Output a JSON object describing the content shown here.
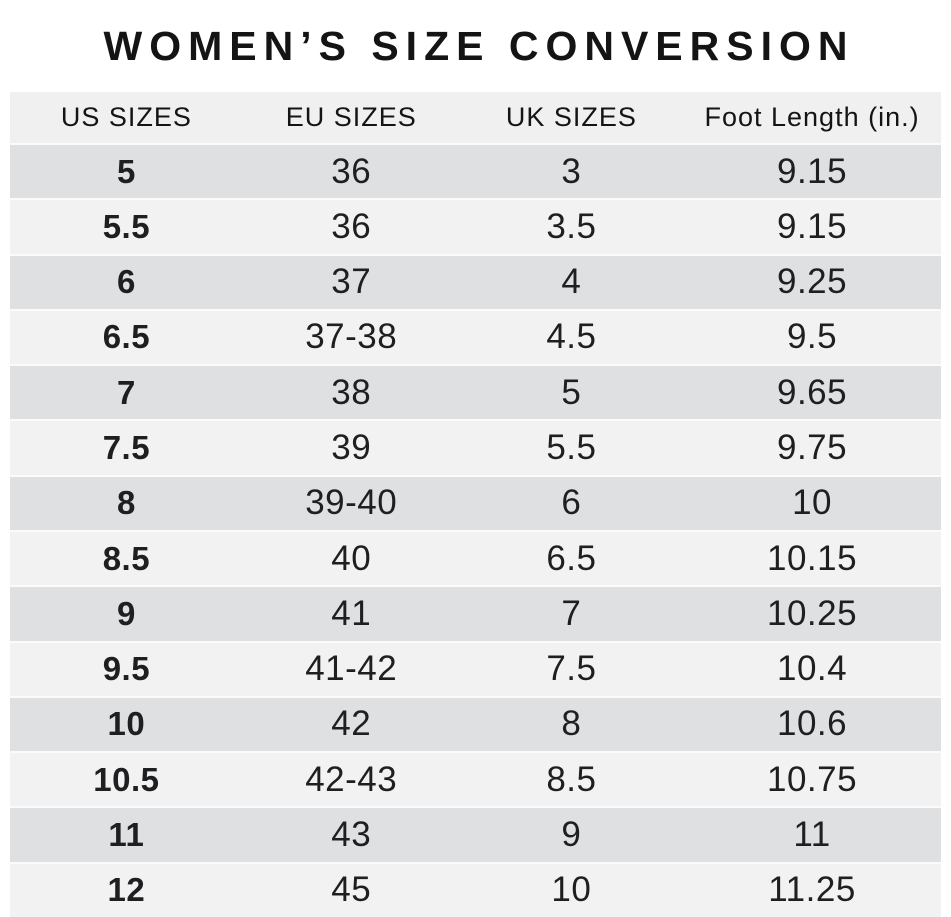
{
  "chart_data": {
    "type": "table",
    "title": "WOMEN’S SIZE CONVERSION",
    "columns": [
      "US SIZES",
      "EU SIZES",
      "UK SIZES",
      "Foot Length (in.)"
    ],
    "rows": [
      [
        "5",
        "36",
        "3",
        "9.15"
      ],
      [
        "5.5",
        "36",
        "3.5",
        "9.15"
      ],
      [
        "6",
        "37",
        "4",
        "9.25"
      ],
      [
        "6.5",
        "37-38",
        "4.5",
        "9.5"
      ],
      [
        "7",
        "38",
        "5",
        "9.65"
      ],
      [
        "7.5",
        "39",
        "5.5",
        "9.75"
      ],
      [
        "8",
        "39-40",
        "6",
        "10"
      ],
      [
        "8.5",
        "40",
        "6.5",
        "10.15"
      ],
      [
        "9",
        "41",
        "7",
        "10.25"
      ],
      [
        "9.5",
        "41-42",
        "7.5",
        "10.4"
      ],
      [
        "10",
        "42",
        "8",
        "10.6"
      ],
      [
        "10.5",
        "42-43",
        "8.5",
        "10.75"
      ],
      [
        "11",
        "43",
        "9",
        "11"
      ],
      [
        "12",
        "45",
        "10",
        "11.25"
      ]
    ],
    "layout": {
      "first_data_row_shade": "dark",
      "alternating": true,
      "grid": "off",
      "column_alignment": "center"
    }
  },
  "colors": {
    "row_dark": "#dee0e1",
    "row_light": "#f2f2f3",
    "header_bg": "#f0f0f0",
    "separator": "#fbfbfb",
    "text": "#1e1f21",
    "title": "#141414",
    "page_bg": "#ffffff"
  }
}
